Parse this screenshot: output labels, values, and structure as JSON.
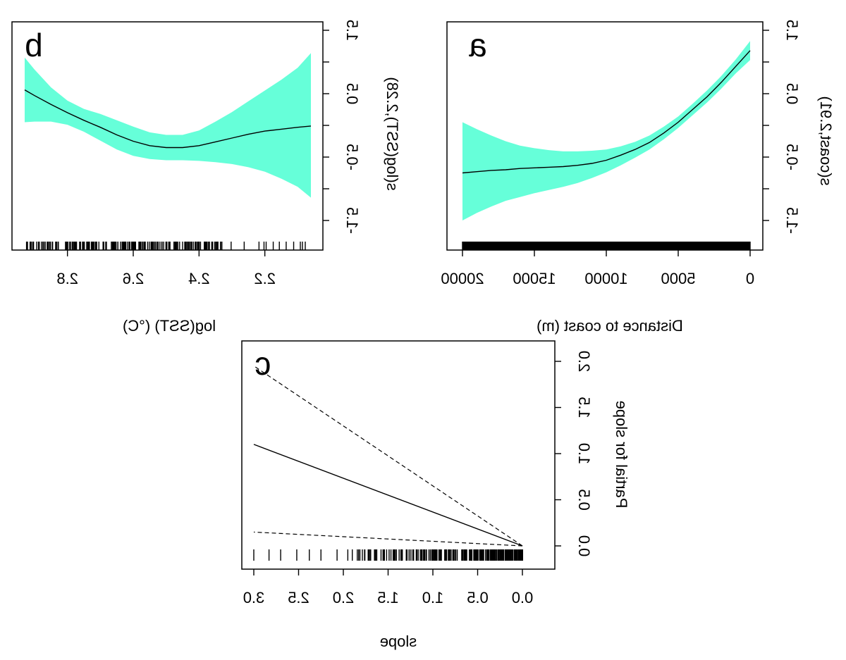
{
  "figure": {
    "note_mirrored": true,
    "ci_color": "#66FFD9",
    "line_color": "#000000"
  },
  "chart_data": [
    {
      "id": "a",
      "type": "line",
      "panel_letter": "a",
      "xlabel": "Distance to coast (m)",
      "ylabel": "s(coast,2.91)",
      "x_reversed": true,
      "xlim": [
        0,
        20000
      ],
      "ylim": [
        -1.5,
        1.5
      ],
      "x_ticks": [
        0,
        5000,
        10000,
        15000,
        20000
      ],
      "x_tick_labels": [
        "0",
        "5000",
        "10000",
        "15000",
        "20000"
      ],
      "y_ticks": [
        -1.5,
        -1.0,
        -0.5,
        0.0,
        0.5,
        1.0,
        1.5
      ],
      "y_tick_labels": [
        "-1.5",
        "",
        "-0.5",
        "",
        "0.5",
        "",
        "1.5"
      ],
      "ci_style": "band",
      "x": [
        0,
        1000,
        2000,
        3000,
        4000,
        5000,
        6000,
        7000,
        8000,
        9000,
        10000,
        11000,
        12000,
        13000,
        14000,
        15000,
        16000,
        17000,
        18000,
        19000,
        20000
      ],
      "fit": [
        1.18,
        0.93,
        0.68,
        0.45,
        0.25,
        0.05,
        -0.12,
        -0.27,
        -0.38,
        -0.47,
        -0.55,
        -0.6,
        -0.63,
        -0.65,
        -0.66,
        -0.67,
        -0.68,
        -0.7,
        -0.71,
        -0.73,
        -0.75
      ],
      "lower": [
        1.03,
        0.82,
        0.58,
        0.36,
        0.16,
        -0.04,
        -0.22,
        -0.38,
        -0.51,
        -0.63,
        -0.74,
        -0.83,
        -0.91,
        -0.97,
        -1.02,
        -1.07,
        -1.13,
        -1.19,
        -1.28,
        -1.38,
        -1.5
      ],
      "upper": [
        1.33,
        1.04,
        0.78,
        0.55,
        0.34,
        0.14,
        -0.02,
        -0.16,
        -0.26,
        -0.33,
        -0.38,
        -0.4,
        -0.41,
        -0.41,
        -0.39,
        -0.36,
        -0.32,
        -0.25,
        -0.16,
        -0.06,
        0.05
      ],
      "rug": "dense"
    },
    {
      "id": "b",
      "type": "line",
      "panel_letter": "b",
      "xlabel": "log(SST) (°C)",
      "ylabel": "s(log(SST),2.28)",
      "x_reversed": true,
      "xlim": [
        2.06,
        2.93
      ],
      "ylim": [
        -1.5,
        1.5
      ],
      "x_ticks": [
        2.2,
        2.4,
        2.6,
        2.8
      ],
      "x_tick_labels": [
        "2.2",
        "2.4",
        "2.6",
        "2.8"
      ],
      "y_ticks": [
        -1.5,
        -1.0,
        -0.5,
        0.0,
        0.5,
        1.0,
        1.5
      ],
      "y_tick_labels": [
        "-1.5",
        "",
        "-0.5",
        "",
        "0.5",
        "",
        "1.5"
      ],
      "ci_style": "band",
      "x": [
        2.06,
        2.1,
        2.15,
        2.2,
        2.25,
        2.3,
        2.35,
        2.4,
        2.45,
        2.5,
        2.55,
        2.6,
        2.65,
        2.7,
        2.75,
        2.8,
        2.85,
        2.9,
        2.93
      ],
      "fit": [
        -0.01,
        -0.03,
        -0.06,
        -0.09,
        -0.14,
        -0.2,
        -0.26,
        -0.32,
        -0.35,
        -0.35,
        -0.32,
        -0.25,
        -0.15,
        -0.03,
        0.08,
        0.2,
        0.33,
        0.47,
        0.56
      ],
      "lower": [
        -1.14,
        -0.97,
        -0.84,
        -0.73,
        -0.66,
        -0.61,
        -0.58,
        -0.56,
        -0.55,
        -0.55,
        -0.53,
        -0.48,
        -0.38,
        -0.24,
        -0.1,
        0.01,
        0.06,
        0.06,
        0.05
      ],
      "upper": [
        1.14,
        0.91,
        0.72,
        0.55,
        0.38,
        0.21,
        0.06,
        -0.08,
        -0.15,
        -0.15,
        -0.11,
        -0.02,
        0.08,
        0.18,
        0.26,
        0.39,
        0.6,
        0.88,
        1.07
      ],
      "rug": "sparse"
    },
    {
      "id": "c",
      "type": "line",
      "panel_letter": "c",
      "xlabel": "slope",
      "ylabel": "Partial for slope",
      "x_reversed": true,
      "xlim": [
        0.0,
        3.0
      ],
      "ylim": [
        0.0,
        2.0
      ],
      "x_ticks": [
        0.0,
        0.5,
        1.0,
        1.5,
        2.0,
        2.5,
        3.0
      ],
      "x_tick_labels": [
        "0.0",
        "0.5",
        "1.0",
        "1.5",
        "2.0",
        "2.5",
        "3.0"
      ],
      "y_ticks": [
        0.0,
        0.5,
        1.0,
        1.5,
        2.0
      ],
      "y_tick_labels": [
        "0.0",
        "0.5",
        "1.0",
        "1.5",
        "2.0"
      ],
      "ci_style": "dashed",
      "x": [
        0.0,
        3.0
      ],
      "fit": [
        0.0,
        1.1
      ],
      "lower": [
        0.0,
        0.15
      ],
      "upper": [
        0.0,
        1.95
      ],
      "rug": "slope"
    }
  ]
}
